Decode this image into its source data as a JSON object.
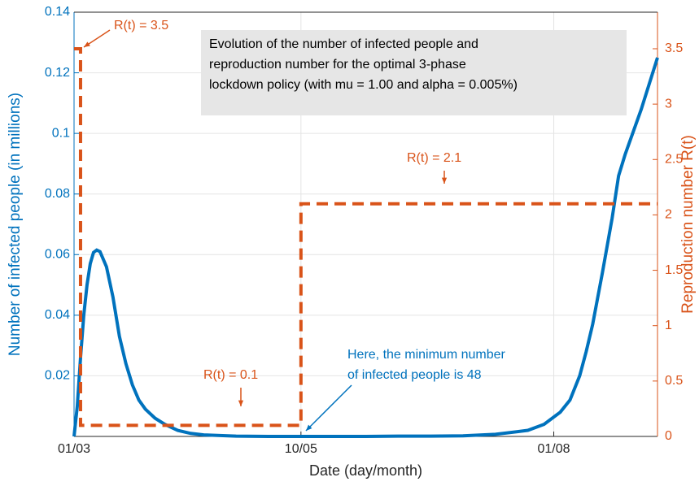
{
  "chart_data": {
    "type": "line",
    "xlabel": "Date (day/month)",
    "ylabel": "Number of infected people (in millions)",
    "y2label": "Reproduction number R(t)",
    "xlim": [
      0,
      180
    ],
    "xticks": [
      {
        "value": 0,
        "label": "01/03"
      },
      {
        "value": 70,
        "label": "10/05"
      },
      {
        "value": 148,
        "label": "01/08"
      }
    ],
    "ylim": [
      0,
      0.14
    ],
    "yticks": [
      0.02,
      0.04,
      0.06,
      0.08,
      0.1,
      0.12,
      0.14
    ],
    "y2lim": [
      0,
      3.83
    ],
    "y2ticks": [
      0,
      0.5,
      1,
      1.5,
      2,
      2.5,
      3,
      3.5
    ],
    "grid": true,
    "series": [
      {
        "name": "Infected",
        "color": "#0072bd",
        "x": [
          0,
          1,
          2,
          3,
          4,
          5,
          6,
          7,
          8,
          10,
          12,
          14,
          16,
          18,
          20,
          22,
          25,
          28,
          32,
          36,
          40,
          50,
          60,
          70,
          80,
          90,
          100,
          110,
          120,
          130,
          140,
          145,
          150,
          153,
          156,
          158,
          160,
          163,
          166,
          168,
          170,
          175,
          180
        ],
        "values": [
          0,
          0.01,
          0.026,
          0.04,
          0.05,
          0.057,
          0.0607,
          0.0615,
          0.061,
          0.056,
          0.046,
          0.033,
          0.024,
          0.017,
          0.012,
          0.009,
          0.006,
          0.004,
          0.002,
          0.001,
          0.0005,
          0.0001,
          0,
          0,
          0,
          0,
          0.0001,
          0.0001,
          0.0002,
          0.0007,
          0.002,
          0.004,
          0.008,
          0.012,
          0.02,
          0.028,
          0.037,
          0.054,
          0.072,
          0.086,
          0.093,
          0.108,
          0.125
        ]
      },
      {
        "name": "R(t)",
        "color": "#d95319",
        "axis": "y2",
        "x": [
          0,
          2,
          2,
          70,
          70,
          180
        ],
        "values": [
          3.5,
          3.5,
          0.1,
          0.1,
          2.1,
          2.1
        ]
      }
    ],
    "annotations": [
      {
        "lines": [
          "Evolution of the number of infected people and",
          "reproduction number for the optimal 3-phase",
          "lockdown policy (with mu = 1.00 and alpha = 0.005%)"
        ]
      },
      {
        "lines": [
          "R(t) = 3.5"
        ]
      },
      {
        "lines": [
          "R(t) = 2.1"
        ]
      },
      {
        "lines": [
          "R(t) = 0.1"
        ]
      },
      {
        "lines": [
          "Here, the minimum number",
          "of infected people is 48"
        ]
      }
    ]
  }
}
